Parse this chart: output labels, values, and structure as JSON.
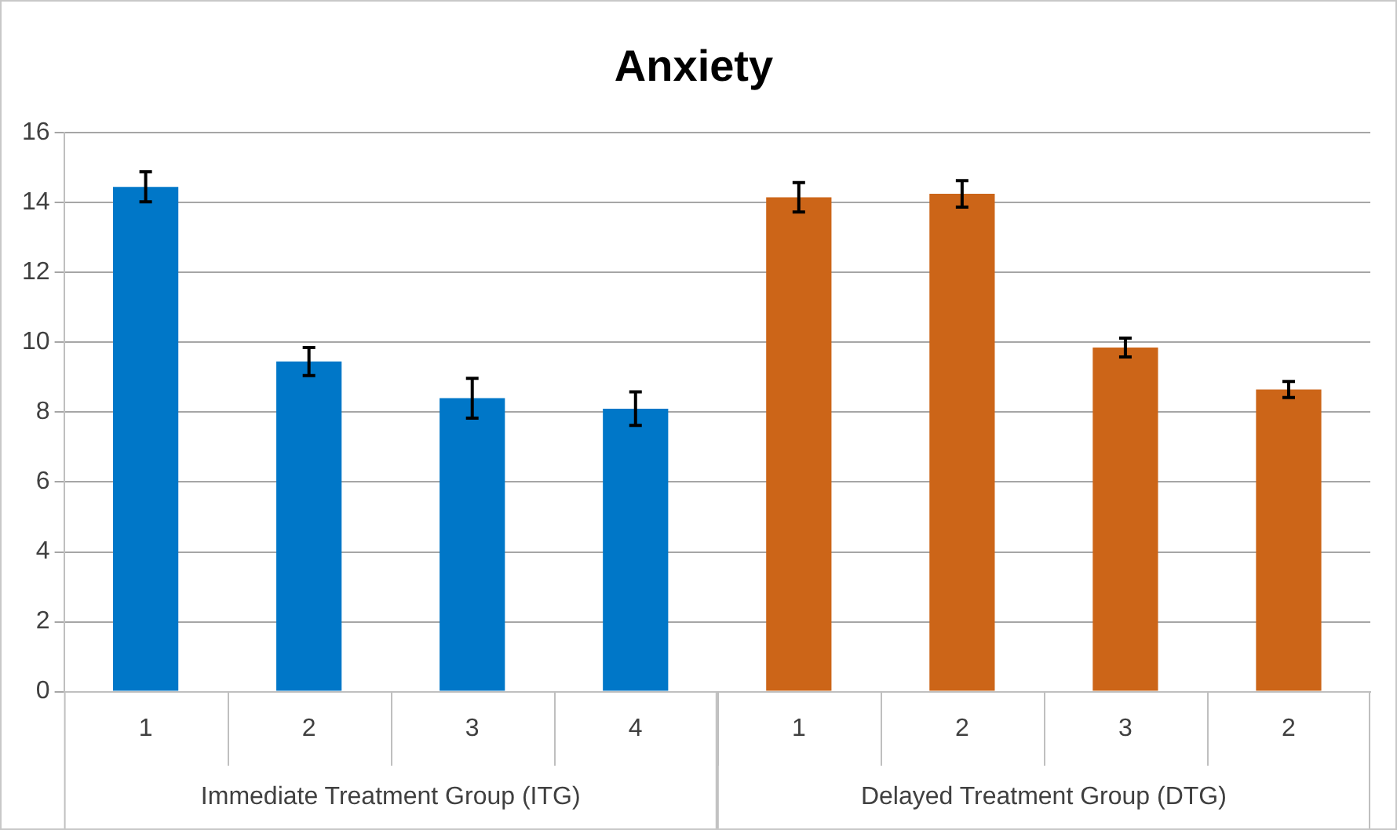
{
  "chart_data": {
    "type": "bar",
    "title": "Anxiety",
    "categories": [
      "1",
      "2",
      "3",
      "4",
      "1",
      "2",
      "3",
      "2"
    ],
    "series": [
      {
        "color": "#0077c8",
        "values": [
          14.45,
          9.45,
          8.4,
          8.1,
          null,
          null,
          null,
          null
        ],
        "errors": [
          0.43,
          0.4,
          0.57,
          0.48,
          null,
          null,
          null,
          null
        ]
      },
      {
        "color": "#cc6518",
        "values": [
          null,
          null,
          null,
          null,
          14.15,
          14.25,
          9.85,
          8.65
        ],
        "errors": [
          null,
          null,
          null,
          null,
          0.42,
          0.38,
          0.27,
          0.23
        ]
      }
    ],
    "annotations": [
      "Immediate Treatment Group (ITG)",
      "Delayed Treatment Group (DTG)"
    ],
    "ylim": [
      0,
      16
    ],
    "yticks": [
      0,
      2,
      4,
      6,
      8,
      10,
      12,
      14,
      16
    ],
    "grid": "y",
    "legend": false
  }
}
